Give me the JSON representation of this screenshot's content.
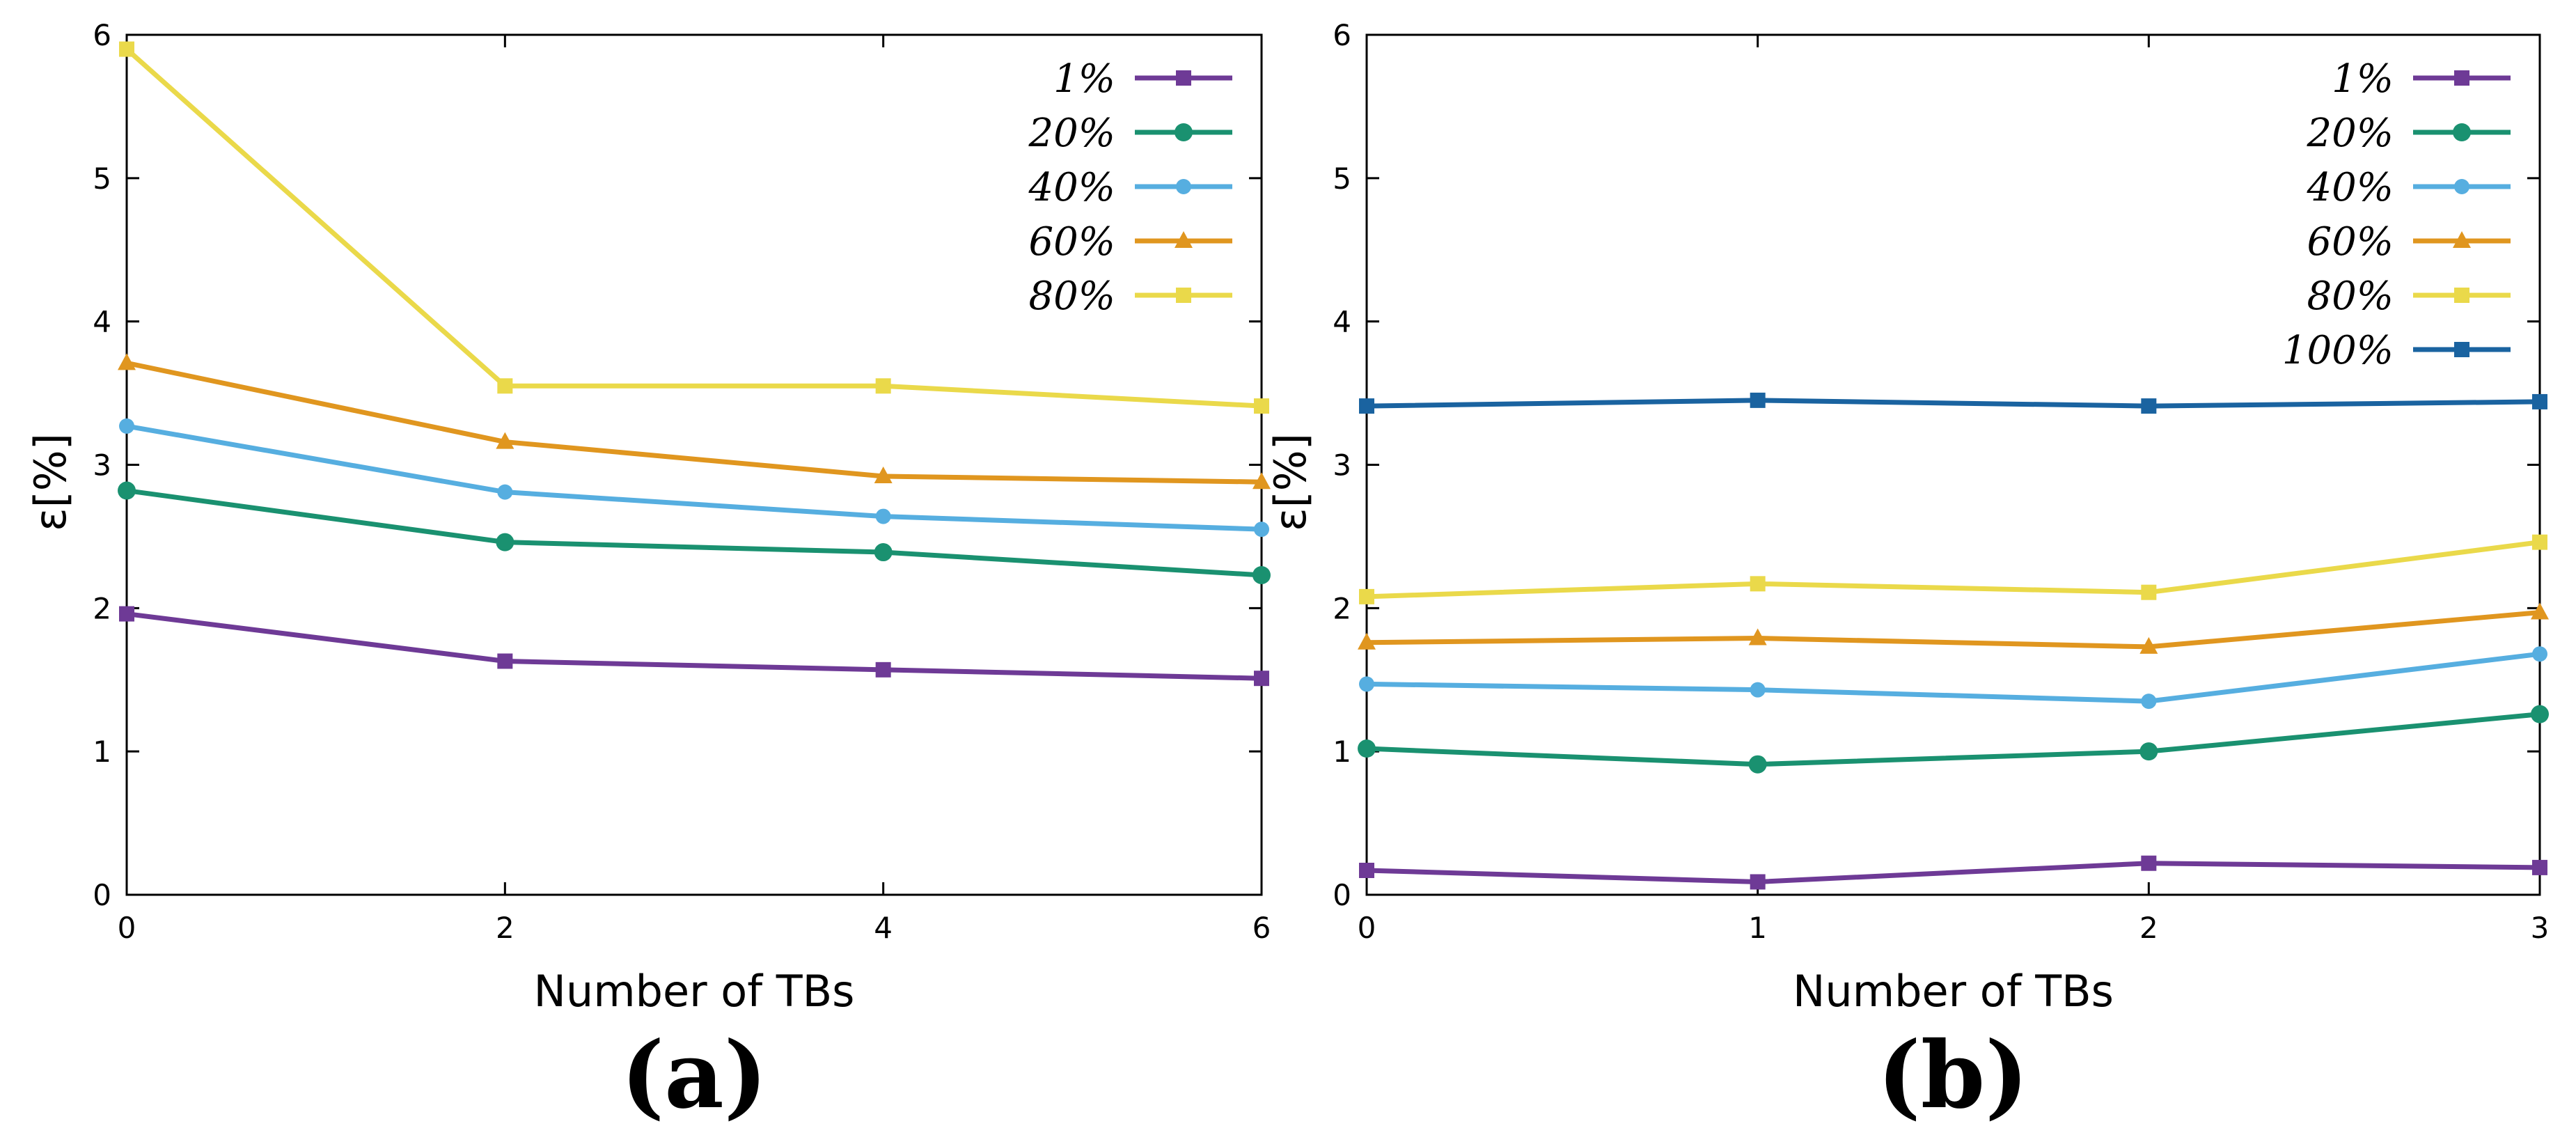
{
  "chart_data": [
    {
      "type": "line",
      "panel_label": "(a)",
      "xlabel": "Number of TBs",
      "ylabel": "ε[%]",
      "xlim": [
        0,
        6
      ],
      "ylim": [
        0,
        6
      ],
      "x_ticks": [
        "0",
        "2",
        "4",
        "6"
      ],
      "y_ticks": [
        "0",
        "1",
        "2",
        "3",
        "4",
        "5",
        "6"
      ],
      "grid": false,
      "legend_position": "top-right",
      "x": [
        0,
        2,
        4,
        6
      ],
      "series": [
        {
          "name": "1%",
          "color": "#6e3a96",
          "marker": "square",
          "values": [
            1.96,
            1.63,
            1.57,
            1.51
          ]
        },
        {
          "name": "20%",
          "color": "#1a9170",
          "marker": "circle",
          "values": [
            2.82,
            2.46,
            2.39,
            2.23
          ]
        },
        {
          "name": "40%",
          "color": "#56aee0",
          "marker": "circle",
          "values": [
            3.27,
            2.81,
            2.64,
            2.55
          ]
        },
        {
          "name": "60%",
          "color": "#e0961f",
          "marker": "triangle",
          "values": [
            3.71,
            3.16,
            2.92,
            2.88
          ]
        },
        {
          "name": "80%",
          "color": "#ead94a",
          "marker": "square",
          "values": [
            5.9,
            3.55,
            3.55,
            3.41
          ]
        }
      ]
    },
    {
      "type": "line",
      "panel_label": "(b)",
      "xlabel": "Number of TBs",
      "ylabel": "ε[%]",
      "xlim": [
        0,
        3
      ],
      "ylim": [
        0,
        6
      ],
      "x_ticks": [
        "0",
        "1",
        "2",
        "3"
      ],
      "y_ticks": [
        "0",
        "1",
        "2",
        "3",
        "4",
        "5",
        "6"
      ],
      "grid": false,
      "legend_position": "top-right",
      "x": [
        0,
        1,
        2,
        3
      ],
      "series": [
        {
          "name": "1%",
          "color": "#6e3a96",
          "marker": "square",
          "values": [
            0.17,
            0.09,
            0.22,
            0.19
          ]
        },
        {
          "name": "20%",
          "color": "#1a9170",
          "marker": "circle",
          "values": [
            1.02,
            0.91,
            1.0,
            1.26
          ]
        },
        {
          "name": "40%",
          "color": "#56aee0",
          "marker": "circle",
          "values": [
            1.47,
            1.43,
            1.35,
            1.68
          ]
        },
        {
          "name": "60%",
          "color": "#e0961f",
          "marker": "triangle",
          "values": [
            1.76,
            1.79,
            1.73,
            1.97
          ]
        },
        {
          "name": "80%",
          "color": "#ead94a",
          "marker": "square",
          "values": [
            2.08,
            2.17,
            2.11,
            2.46
          ]
        },
        {
          "name": "100%",
          "color": "#1a63a0",
          "marker": "square",
          "values": [
            3.41,
            3.45,
            3.41,
            3.44
          ]
        }
      ]
    }
  ]
}
